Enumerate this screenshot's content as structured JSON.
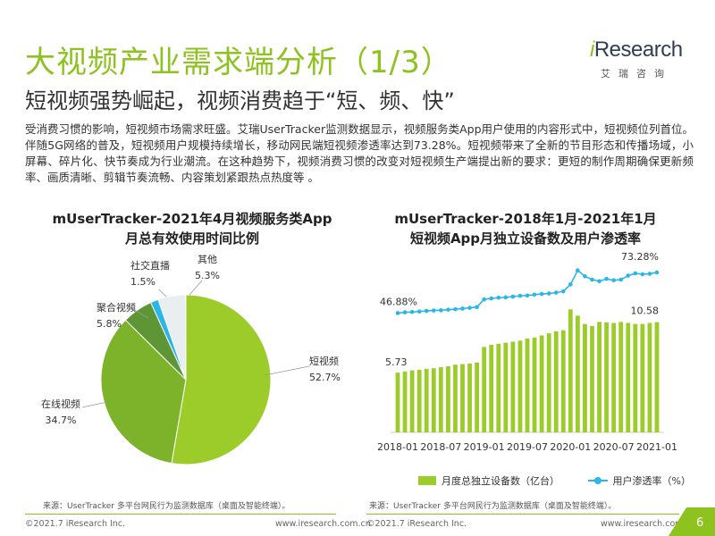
{
  "header": {
    "title": "大视频产业需求端分析（1/3）",
    "subtitle": "短视频强势崛起，视频消费趋于“短、频、快”"
  },
  "logo": {
    "word_i": "i",
    "word_rest": "Research",
    "cn": "艾瑞咨询"
  },
  "intro": "受消费习惯的影响，短视频市场需求旺盛。艾瑞UserTracker监测数据显示，视频服务类App用户使用的内容形式中，短视频位列首位。伴随5G网络的普及，短视频用户规模持续增长，移动网民端短视频渗透率达到73.28%。短视频带来了全新的节目形态和传播场域，小屏幕、碎片化、快节奏成为行业潮流。在这种趋势下，视频消费习惯的改变对短视频生产端提出新的要求：更短的制作周期确保更新频率、画质清晰、剪辑节奏流畅、内容策划紧跟热点热度等 。",
  "chart_data": [
    {
      "type": "pie",
      "title": "mUserTracker-2021年4月视频服务类App月总有效使用时间比例",
      "title_line1": "mUserTracker-2021年4月视频服务类App",
      "title_line2": "月总有效使用时间比例",
      "slices": [
        {
          "label": "短视频",
          "value": 52.7,
          "value_label": "52.7%",
          "color": "#9ccc2a"
        },
        {
          "label": "在线视频",
          "value": 34.7,
          "value_label": "34.7%",
          "color": "#7db32b"
        },
        {
          "label": "聚合视频",
          "value": 5.8,
          "value_label": "5.8%",
          "color": "#5e9635"
        },
        {
          "label": "社交直播",
          "value": 1.5,
          "value_label": "1.5%",
          "color": "#2bb6e8"
        },
        {
          "label": "其他",
          "value": 5.3,
          "value_label": "5.3%",
          "color": "#e9eef0"
        }
      ],
      "source": "来源：UserTracker 多平台网民行为监测数据库（桌面及智能终端）。"
    },
    {
      "type": "bar+line",
      "title": "mUserTracker-2018年1月-2021年1月短视频App月独立设备数及用户渗透率",
      "title_line1": "mUserTracker-2018年1月-2021年1月",
      "title_line2": "短视频App月独立设备数及用户渗透率",
      "x_tick_labels": [
        "2018-01",
        "2018-07",
        "2019-01",
        "2019-07",
        "2020-01",
        "2020-07",
        "2021-01"
      ],
      "bars": {
        "name": "月度总独立设备数（亿台）",
        "color": "#9ccc2a",
        "values": [
          5.73,
          5.85,
          5.95,
          6.0,
          6.1,
          6.15,
          6.25,
          6.35,
          6.5,
          6.55,
          6.6,
          6.7,
          8.2,
          8.4,
          8.5,
          8.6,
          8.7,
          8.8,
          9.0,
          9.1,
          9.3,
          9.5,
          9.7,
          9.8,
          11.8,
          11.2,
          10.4,
          10.2,
          10.6,
          10.55,
          10.5,
          10.6,
          10.5,
          10.4,
          10.4,
          10.5,
          10.58
        ],
        "first_label": "5.73",
        "last_label": "10.58"
      },
      "line": {
        "name": "用户渗透率（%）",
        "color": "#2bb6e8",
        "values": [
          46.88,
          47.4,
          47.6,
          47.9,
          48.3,
          48.6,
          48.7,
          49.1,
          49.4,
          49.8,
          50.3,
          50.8,
          55.8,
          56.4,
          56.9,
          57.1,
          57.6,
          58.1,
          58.3,
          58.9,
          59.3,
          59.6,
          60.2,
          61.0,
          65.5,
          74.6,
          70.8,
          68.6,
          67.6,
          69.1,
          68.2,
          68.6,
          71.2,
          72.7,
          72.1,
          72.4,
          73.28
        ],
        "first_label": "46.88%",
        "last_label": "73.28%"
      },
      "source": "来源：UserTracker 多平台网民行为监测数据库（桌面及智能终端）。"
    }
  ],
  "footer": {
    "copyright_left": "©2021.7 iResearch Inc.",
    "url_left": "www.iresearch.com.cn",
    "copyright_right": "©2021.7 iResearch Inc.",
    "url_right": "www.iresearch.com.cn",
    "page": "6"
  }
}
